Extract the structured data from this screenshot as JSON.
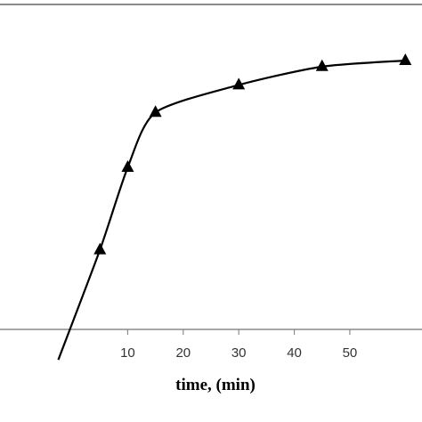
{
  "chart_data": {
    "type": "line",
    "title": "",
    "xlabel": "time, (min)",
    "ylabel": "",
    "grid": false,
    "x_ticks": [
      10,
      20,
      30,
      40,
      50
    ],
    "series": [
      {
        "marker": "triangle",
        "color": "#000000",
        "x": [
          5,
          10,
          15,
          30,
          45,
          60
        ],
        "y": [
          0.31,
          0.58,
          0.76,
          0.85,
          0.91,
          0.93
        ]
      }
    ]
  }
}
